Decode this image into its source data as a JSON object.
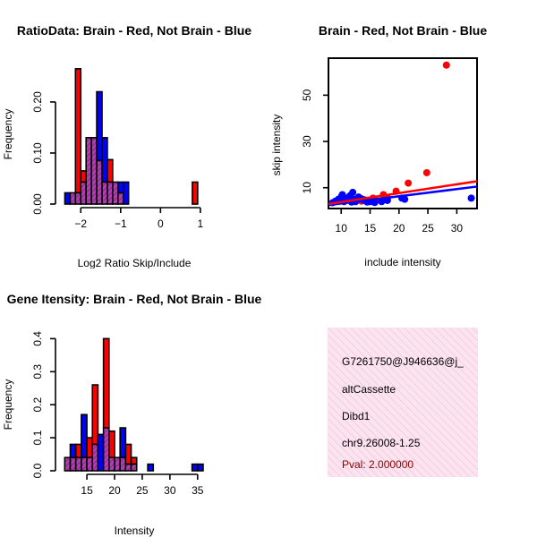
{
  "colors": {
    "red": "#ff0000",
    "blue": "#0000ff",
    "purple": "#a020a0",
    "info_bg": "#f9dcec",
    "pval": "#8b0000"
  },
  "chart_data": [
    {
      "id": "ratio",
      "type": "bar",
      "title": "RatioData: Brain - Red, Not Brain - Blue",
      "xlabel": "Log2 Ratio Skip/Include",
      "ylabel": "Frequency",
      "xlim": [
        -2.5,
        1.25
      ],
      "ylim": [
        0,
        0.27
      ],
      "xticks": [
        -2,
        -1,
        0,
        1
      ],
      "yticks": [
        0.0,
        0.1,
        0.2
      ],
      "ytick_labels": [
        "0.00",
        "0.10",
        "0.20"
      ],
      "bin_start": -2.4,
      "bin_width": 0.1333,
      "series": [
        {
          "name": "Brain",
          "color": "red",
          "values": [
            0.0,
            0.022,
            0.265,
            0.065,
            0.13,
            0.13,
            0.085,
            0.043,
            0.087,
            0.043,
            0.022,
            0.0,
            0.0,
            0.0,
            0.0,
            0.0,
            0.0,
            0.0,
            0.0,
            0.0,
            0.0,
            0.0,
            0.0,
            0.0,
            0.043
          ]
        },
        {
          "name": "Not Brain",
          "color": "blue",
          "values": [
            0.022,
            0.022,
            0.022,
            0.043,
            0.13,
            0.13,
            0.22,
            0.13,
            0.043,
            0.043,
            0.043,
            0.043,
            0.0,
            0.0,
            0.0,
            0.0,
            0.0,
            0.0,
            0.0,
            0.0,
            0.0,
            0.0,
            0.0,
            0.0,
            0.0
          ]
        }
      ]
    },
    {
      "id": "scatter",
      "type": "scatter",
      "title": "Brain - Red, Not Brain - Blue",
      "xlabel": "include intensity",
      "ylabel": "skip intensity",
      "xlim": [
        7.8,
        33.5
      ],
      "ylim": [
        1,
        66
      ],
      "xticks": [
        10,
        15,
        20,
        25,
        30
      ],
      "yticks": [
        10,
        30,
        50
      ],
      "series": [
        {
          "name": "Brain",
          "color": "red",
          "points": [
            [
              28.2,
              63
            ],
            [
              24.8,
              16.5
            ],
            [
              21.6,
              12
            ],
            [
              19.5,
              8.5
            ],
            [
              17.3,
              7.0
            ],
            [
              15.5,
              5.5
            ],
            [
              14.0,
              4.8
            ],
            [
              12.5,
              4.5
            ],
            [
              11.0,
              5.0
            ],
            [
              13.5,
              4.2
            ],
            [
              16.0,
              4.5
            ],
            [
              18.0,
              5.5
            ],
            [
              10.5,
              4.8
            ]
          ],
          "fit": [
            [
              7.8,
              3.0
            ],
            [
              33.5,
              12.8
            ]
          ]
        },
        {
          "name": "Not Brain",
          "color": "blue",
          "points": [
            [
              8.5,
              3.5
            ],
            [
              9.0,
              4.2
            ],
            [
              9.5,
              5.0
            ],
            [
              10.0,
              6.0
            ],
            [
              10.2,
              7.0
            ],
            [
              10.5,
              4.0
            ],
            [
              11.0,
              5.5
            ],
            [
              11.5,
              6.5
            ],
            [
              11.8,
              3.8
            ],
            [
              12.0,
              8.0
            ],
            [
              12.3,
              5.0
            ],
            [
              12.5,
              4.0
            ],
            [
              13.0,
              6.0
            ],
            [
              13.5,
              5.2
            ],
            [
              14.0,
              4.5
            ],
            [
              14.5,
              3.8
            ],
            [
              15.0,
              4.0
            ],
            [
              15.8,
              3.6
            ],
            [
              17.0,
              4.0
            ],
            [
              18.0,
              4.5
            ],
            [
              20.5,
              5.5
            ],
            [
              21.0,
              5.0
            ],
            [
              32.5,
              5.5
            ]
          ],
          "fit": [
            [
              7.8,
              2.5
            ],
            [
              33.5,
              10.5
            ]
          ]
        }
      ]
    },
    {
      "id": "intensity",
      "type": "bar",
      "title": "Gene Itensity: Brain - Red, Not Brain - Blue",
      "xlabel": "Intensity",
      "ylabel": "Frequency",
      "xlim": [
        10.3,
        37.3
      ],
      "ylim": [
        0,
        0.42
      ],
      "xticks": [
        15,
        20,
        25,
        30,
        35
      ],
      "yticks": [
        0.0,
        0.1,
        0.2,
        0.3,
        0.4
      ],
      "ytick_labels": [
        "0.0",
        "0.1",
        "0.2",
        "0.3",
        "0.4"
      ],
      "bin_start": 11,
      "bin_width": 1,
      "series": [
        {
          "name": "Brain",
          "color": "red",
          "values": [
            0.04,
            0.04,
            0.08,
            0.04,
            0.1,
            0.26,
            0.0,
            0.4,
            0.12,
            0.04,
            0.04,
            0.08,
            0.04,
            0.0,
            0.0,
            0.0,
            0.0,
            0.0,
            0.0,
            0.0,
            0.0,
            0.0,
            0.0,
            0.0,
            0.0
          ]
        },
        {
          "name": "Not Brain",
          "color": "blue",
          "values": [
            0.04,
            0.08,
            0.04,
            0.17,
            0.04,
            0.08,
            0.11,
            0.13,
            0.04,
            0.04,
            0.13,
            0.02,
            0.02,
            0.0,
            0.0,
            0.02,
            0.0,
            0.0,
            0.0,
            0.0,
            0.0,
            0.0,
            0.0,
            0.02,
            0.02
          ]
        }
      ]
    }
  ],
  "info": {
    "event_id": "G7261750@J946636@j_",
    "event_type": "altCassette",
    "gene": "Dibd1",
    "location": "chr9.26008-1.25",
    "pval": "Pval: 2.000000"
  }
}
